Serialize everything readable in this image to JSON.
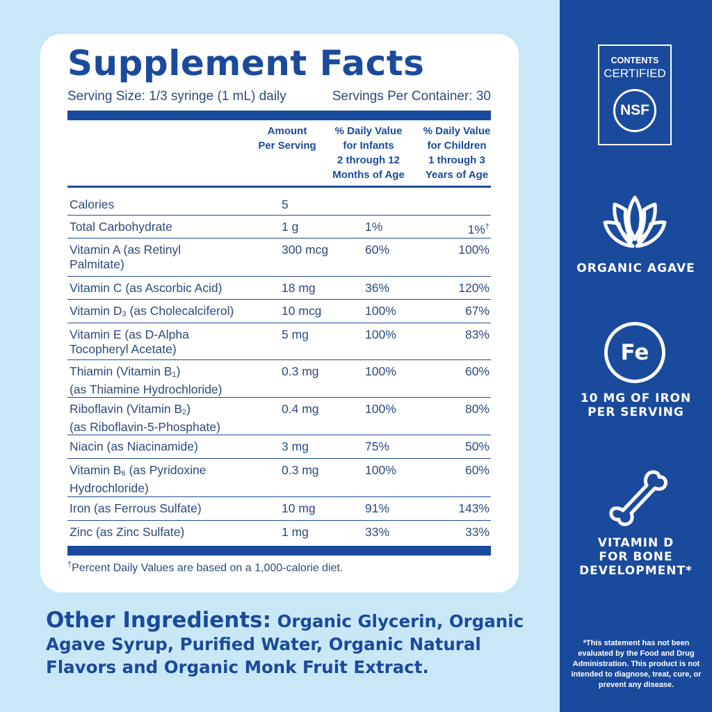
{
  "panel": {
    "title": "Supplement Facts",
    "serving_size": "Serving Size: 1/3 syringe (1 mL) daily",
    "servings_per_container": "Servings Per Container: 30",
    "headers": {
      "amount": [
        "Amount",
        "Per Serving"
      ],
      "infants": [
        "% Daily Value",
        "for Infants",
        "2 through 12",
        "Months of Age"
      ],
      "children": [
        "% Daily Value",
        "for Children",
        "1 through 3",
        "Years of Age"
      ]
    },
    "rows": [
      {
        "name": "Calories",
        "amount": "5",
        "infants": "",
        "children": ""
      },
      {
        "name": "Total Carbohydrate",
        "amount": "1 g",
        "infants": "1%",
        "children": "1%",
        "children_mark": "†"
      },
      {
        "name_lines": [
          "Vitamin A (as Retinyl",
          "Palmitate)"
        ],
        "amount": "300 mcg",
        "infants": "60%",
        "children": "100%"
      },
      {
        "name": "Vitamin C (as Ascorbic Acid)",
        "amount": "18 mg",
        "infants": "36%",
        "children": "120%"
      },
      {
        "name_pre": "Vitamin D",
        "name_sub": "3",
        "name_post": " (as Cholecalciferol)",
        "amount": "10 mcg",
        "infants": "100%",
        "children": "67%"
      },
      {
        "name_lines": [
          "Vitamin E (as D-Alpha",
          "Tocopheryl Acetate)"
        ],
        "amount": "5 mg",
        "infants": "100%",
        "children": "83%"
      },
      {
        "name_pre": "Thiamin (Vitamin B",
        "name_sub": "1",
        "name_post": ")",
        "name_line2": "(as Thiamine Hydrochloride)",
        "amount": "0.3 mg",
        "infants": "100%",
        "children": "60%"
      },
      {
        "name_pre": "Riboflavin (Vitamin B",
        "name_sub": "2",
        "name_post": ")",
        "name_line2": "(as Riboflavin-5-Phosphate)",
        "amount": "0.4 mg",
        "infants": "100%",
        "children": "80%"
      },
      {
        "name": "Niacin (as Niacinamide)",
        "amount": "3 mg",
        "infants": "75%",
        "children": "50%"
      },
      {
        "name_pre": "Vitamin B",
        "name_sub": "6",
        "name_post": " (as Pyridoxine",
        "name_line2": "Hydrochloride)",
        "amount": "0.3 mg",
        "infants": "100%",
        "children": "60%"
      },
      {
        "name": "Iron (as Ferrous Sulfate)",
        "amount": "10 mg",
        "infants": "91%",
        "children": "143%"
      },
      {
        "name": "Zinc (as Zinc Sulfate)",
        "amount": "1 mg",
        "infants": "33%",
        "children": "33%"
      }
    ],
    "footnote_mark": "†",
    "footnote": "Percent Daily Values are based on a 1,000-calorie diet."
  },
  "other_ingredients": {
    "label": "Other Ingredients:",
    "text": " Organic Glycerin, Organic Agave Syrup, Purified Water, Organic Natural Flavors and Organic Monk Fruit Extract."
  },
  "sidebar": {
    "nsf": {
      "line1": "CONTENTS",
      "line2": "CERTIFIED",
      "logo_text": "NSF"
    },
    "agave_caption": "ORGANIC AGAVE",
    "fe_symbol": "Fe",
    "iron_caption_lines": [
      "10 MG OF IRON",
      "PER SERVING"
    ],
    "bone_caption_lines": [
      "VITAMIN D",
      "FOR BONE",
      "DEVELOPMENT*"
    ],
    "disclaimer": "*This statement has not been evaluated by the Food and Drug Administration. This product is not intended to diagnose, treat, cure, or prevent any disease.",
    "icons": [
      "agave-leaf-icon",
      "iron-fe-icon",
      "bone-icon"
    ]
  },
  "colors": {
    "navy": "#1a4a9c",
    "light_blue": "#c9e8f7",
    "text": "#2c4a7c",
    "white": "#ffffff"
  }
}
